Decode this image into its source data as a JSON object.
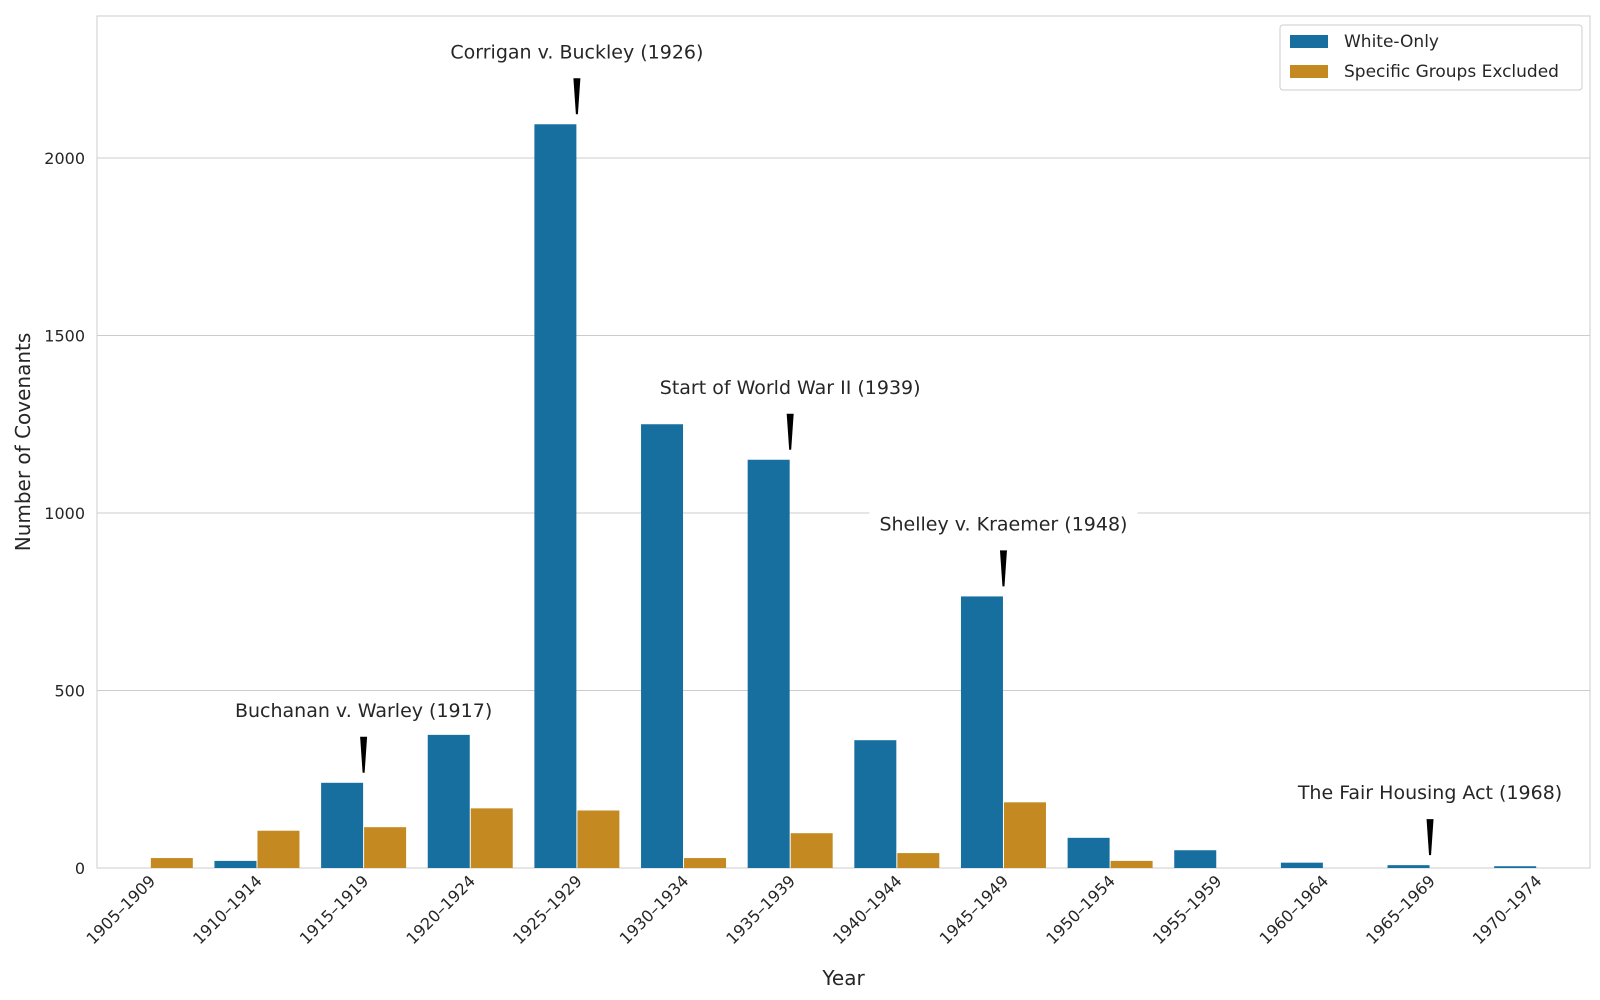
{
  "chart_data": {
    "type": "bar",
    "categories": [
      "1905–1909",
      "1910–1914",
      "1915–1919",
      "1920–1924",
      "1925–1929",
      "1930–1934",
      "1935–1939",
      "1940–1944",
      "1945–1949",
      "1950–1954",
      "1955–1959",
      "1960–1964",
      "1965–1969",
      "1970–1974"
    ],
    "series": [
      {
        "name": "White-Only",
        "color": "#176f9f",
        "values": [
          0,
          20,
          240,
          375,
          2095,
          1250,
          1150,
          360,
          765,
          85,
          50,
          15,
          8,
          5
        ]
      },
      {
        "name": "Specific Groups Excluded",
        "color": "#c48a21",
        "values": [
          28,
          105,
          115,
          168,
          162,
          28,
          98,
          42,
          185,
          20,
          0,
          0,
          0,
          0
        ]
      }
    ],
    "xlabel": "Year",
    "ylabel": "Number of Covenants",
    "ylim": [
      0,
      2400
    ],
    "yticks": [
      0,
      500,
      1000,
      1500,
      2000
    ],
    "grid": true,
    "legend_position": "top-right",
    "annotations": [
      {
        "text": "Buchanan v. Warley (1917)",
        "category_index": 2,
        "value": 240
      },
      {
        "text": "Corrigan v. Buckley (1926)",
        "category_index": 4,
        "value": 2095
      },
      {
        "text": "Start of World War II (1939)",
        "category_index": 6,
        "value": 1150
      },
      {
        "text": "Shelley v. Kraemer (1948)",
        "category_index": 8,
        "value": 765
      },
      {
        "text": "The Fair Housing Act (1968)",
        "category_index": 12,
        "value": 8
      }
    ]
  }
}
